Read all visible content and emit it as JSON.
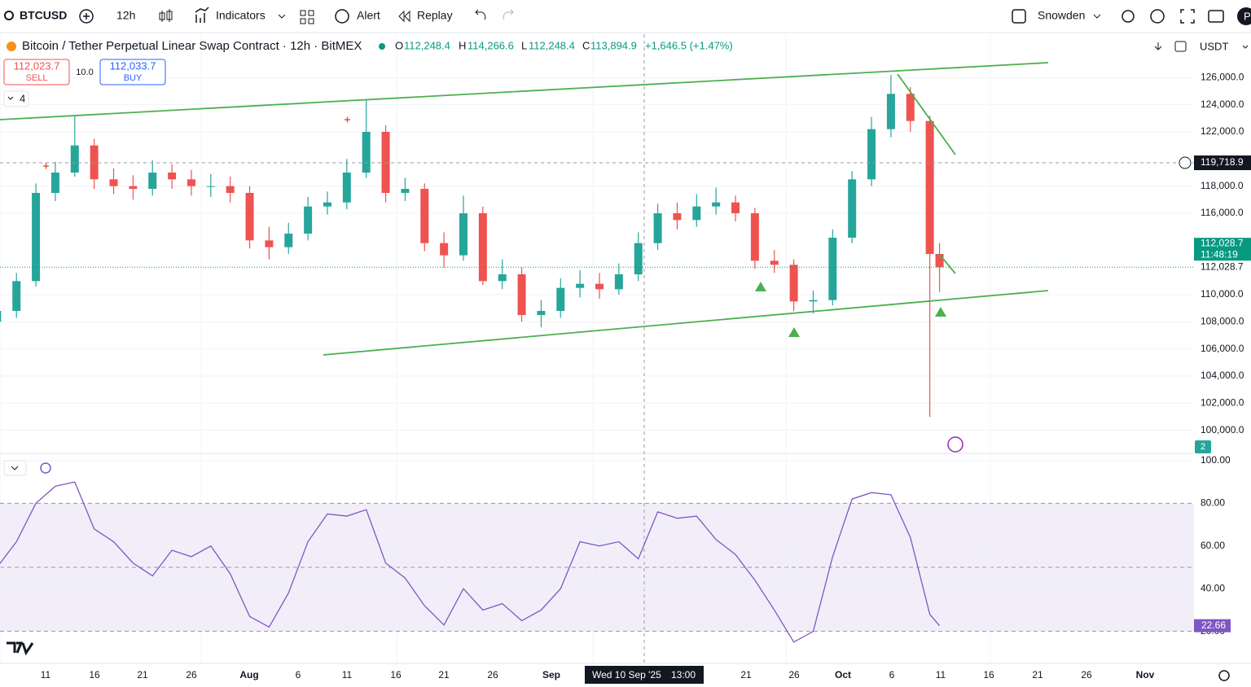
{
  "toolbar": {
    "symbol": "BTCUSD",
    "interval": "12h",
    "indicators": "Indicators",
    "alert": "Alert",
    "replay": "Replay",
    "layout": "Snowden",
    "avatar": "P"
  },
  "legend": {
    "title": "Bitcoin / Tether Perpetual Linear Swap Contract · 12h · BitMEX",
    "o_key": "O",
    "o": "112,248.4",
    "h_key": "H",
    "h": "114,266.6",
    "l_key": "L",
    "l": "112,248.4",
    "c_key": "C",
    "c": "113,894.9",
    "change": "+1,646.5 (+1.47%)"
  },
  "trade": {
    "sell_price": "112,023.7",
    "sell": "SELL",
    "qty": "10.0",
    "buy_price": "112,033.7",
    "buy": "BUY",
    "collapsed_count": "4"
  },
  "currency": "USDT",
  "volume_badge": "2",
  "chart_data": [
    {
      "type": "candlestick",
      "up_color": "#26a69a",
      "down_color": "#ef5350",
      "open": [
        108000,
        108800,
        111000,
        117500,
        119000,
        121000,
        118500,
        118000,
        117800,
        119000,
        118500,
        118000,
        118000,
        117500,
        114000,
        113500,
        114500,
        116500,
        116800,
        119000,
        122000,
        117500,
        117800,
        113800,
        112900,
        116000,
        111000,
        111500,
        108500,
        108800,
        110500,
        110800,
        110400,
        111500,
        113800,
        116000,
        115500,
        116500,
        116800,
        116000,
        112500,
        112200,
        109500,
        109600,
        114200,
        118500,
        122200,
        124800,
        122800,
        113000
      ],
      "high": [
        109500,
        111600,
        118200,
        119800,
        123200,
        121500,
        119300,
        118800,
        119900,
        119600,
        119200,
        118900,
        118700,
        118000,
        115000,
        115300,
        117200,
        117600,
        120000,
        124400,
        122500,
        118600,
        118200,
        114600,
        117300,
        116500,
        112600,
        112000,
        109600,
        111200,
        111800,
        111600,
        112300,
        114600,
        116700,
        116800,
        117400,
        117900,
        117300,
        116400,
        113300,
        112600,
        110300,
        114800,
        119100,
        123100,
        126200,
        125300,
        123200,
        113800
      ],
      "low": [
        107200,
        108300,
        110600,
        116900,
        118700,
        117800,
        117400,
        117000,
        117300,
        117800,
        117300,
        117200,
        116800,
        113400,
        112600,
        113000,
        114000,
        115900,
        116300,
        118600,
        116800,
        116900,
        113200,
        112000,
        112500,
        110700,
        110400,
        108000,
        107600,
        108300,
        109800,
        109700,
        110000,
        111000,
        113300,
        114800,
        115000,
        115900,
        115400,
        111900,
        111600,
        108800,
        108600,
        109200,
        113800,
        118000,
        121600,
        122000,
        101000,
        110200
      ],
      "close": [
        108800,
        111000,
        117500,
        119000,
        121000,
        118500,
        118000,
        117800,
        119000,
        118500,
        118000,
        118000,
        117500,
        114000,
        113500,
        114500,
        116500,
        116800,
        119000,
        122000,
        117500,
        117800,
        113800,
        112900,
        116000,
        111000,
        111500,
        108500,
        108800,
        110500,
        110800,
        110400,
        111500,
        113800,
        116000,
        115500,
        116500,
        116800,
        116000,
        112500,
        112200,
        109500,
        109600,
        114200,
        118500,
        122200,
        124800,
        122800,
        113000,
        112028.7
      ],
      "ylim": [
        98300,
        129200
      ],
      "yticks": [
        {
          "value": 126000,
          "label": "126,000.0"
        },
        {
          "value": 124000,
          "label": "124,000.0"
        },
        {
          "value": 122000,
          "label": "122,000.0"
        },
        {
          "value": 118000,
          "label": "118,000.0"
        },
        {
          "value": 116000,
          "label": "116,000.0"
        },
        {
          "value": 110000,
          "label": "110,000.0"
        },
        {
          "value": 108000,
          "label": "108,000.0"
        },
        {
          "value": 106000,
          "label": "106,000.0"
        },
        {
          "value": 104000,
          "label": "104,000.0"
        },
        {
          "value": 102000,
          "label": "102,000.0"
        },
        {
          "value": 100000,
          "label": "100,000.0"
        }
      ],
      "price_line": {
        "value": 112028.7,
        "label": "112,028.7",
        "countdown": "11:48:19",
        "color": "#089981"
      },
      "crosshair": {
        "value": 119718.9,
        "label": "119,718.9",
        "date": "Wed 10 Sep '25",
        "time": "13:00"
      },
      "xtick_labels": [
        "11",
        "16",
        "21",
        "26",
        "Aug",
        "6",
        "11",
        "16",
        "21",
        "26",
        "Sep",
        "21",
        "26",
        "Oct",
        "6",
        "11",
        "16",
        "21",
        "26",
        "Nov"
      ],
      "grid": true
    },
    {
      "type": "line",
      "color": "#7e57c2",
      "values": [
        50,
        62,
        80,
        88,
        90,
        68,
        62,
        52,
        46,
        58,
        55,
        60,
        47,
        27,
        22,
        38,
        62,
        75,
        74,
        77,
        52,
        45,
        32,
        23,
        40,
        30,
        33,
        25,
        30,
        40,
        62,
        60,
        62,
        54,
        76,
        73,
        74,
        63,
        56,
        44,
        30,
        15,
        20,
        55,
        82,
        85,
        84,
        64,
        28,
        22.66
      ],
      "ylim": [
        5,
        103
      ],
      "yticks": [
        {
          "value": 100,
          "label": "100.00"
        },
        {
          "value": 80,
          "label": "80.00"
        },
        {
          "value": 60,
          "label": "60.00"
        },
        {
          "value": 40,
          "label": "40.00"
        },
        {
          "value": 20,
          "label": "20.00"
        }
      ]
    }
  ]
}
